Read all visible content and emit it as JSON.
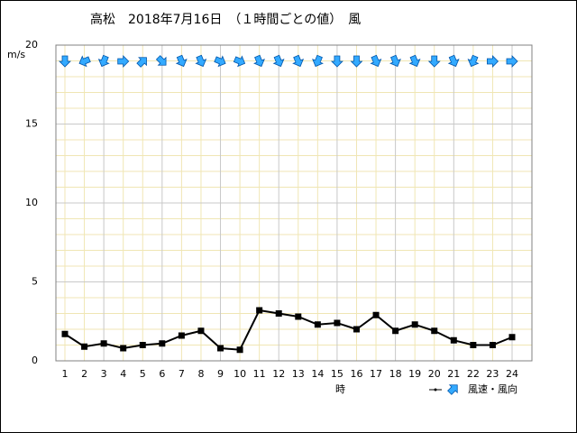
{
  "chart_data": {
    "type": "line",
    "title": "高松　2018年7月16日　（１時間ごとの値）　風",
    "y_unit": "m/s",
    "x_label": "時",
    "legend_label": "風速・風向",
    "categories": [
      "1",
      "2",
      "3",
      "4",
      "5",
      "6",
      "7",
      "8",
      "9",
      "10",
      "11",
      "12",
      "13",
      "14",
      "15",
      "16",
      "17",
      "18",
      "19",
      "20",
      "21",
      "22",
      "23",
      "24"
    ],
    "series": [
      {
        "name": "風速",
        "color": "#000000",
        "values": [
          1.7,
          0.9,
          1.1,
          0.8,
          1.0,
          1.1,
          1.6,
          1.9,
          0.8,
          0.7,
          3.2,
          3.0,
          2.8,
          2.3,
          2.4,
          2.0,
          2.9,
          1.9,
          2.3,
          1.9,
          1.3,
          1.0,
          1.0,
          1.5
        ]
      }
    ],
    "wind_direction": {
      "name": "風向",
      "color": "#33aaff",
      "values": [
        0,
        67.5,
        22.5,
        270,
        225,
        315,
        337.5,
        337.5,
        292.5,
        292.5,
        337.5,
        337.5,
        337.5,
        22.5,
        0,
        0,
        337.5,
        337.5,
        337.5,
        0,
        337.5,
        22.5,
        270,
        270
      ]
    },
    "ylim": [
      0,
      20
    ],
    "yticks": [
      0,
      5,
      10,
      15,
      20
    ],
    "grid": true
  }
}
